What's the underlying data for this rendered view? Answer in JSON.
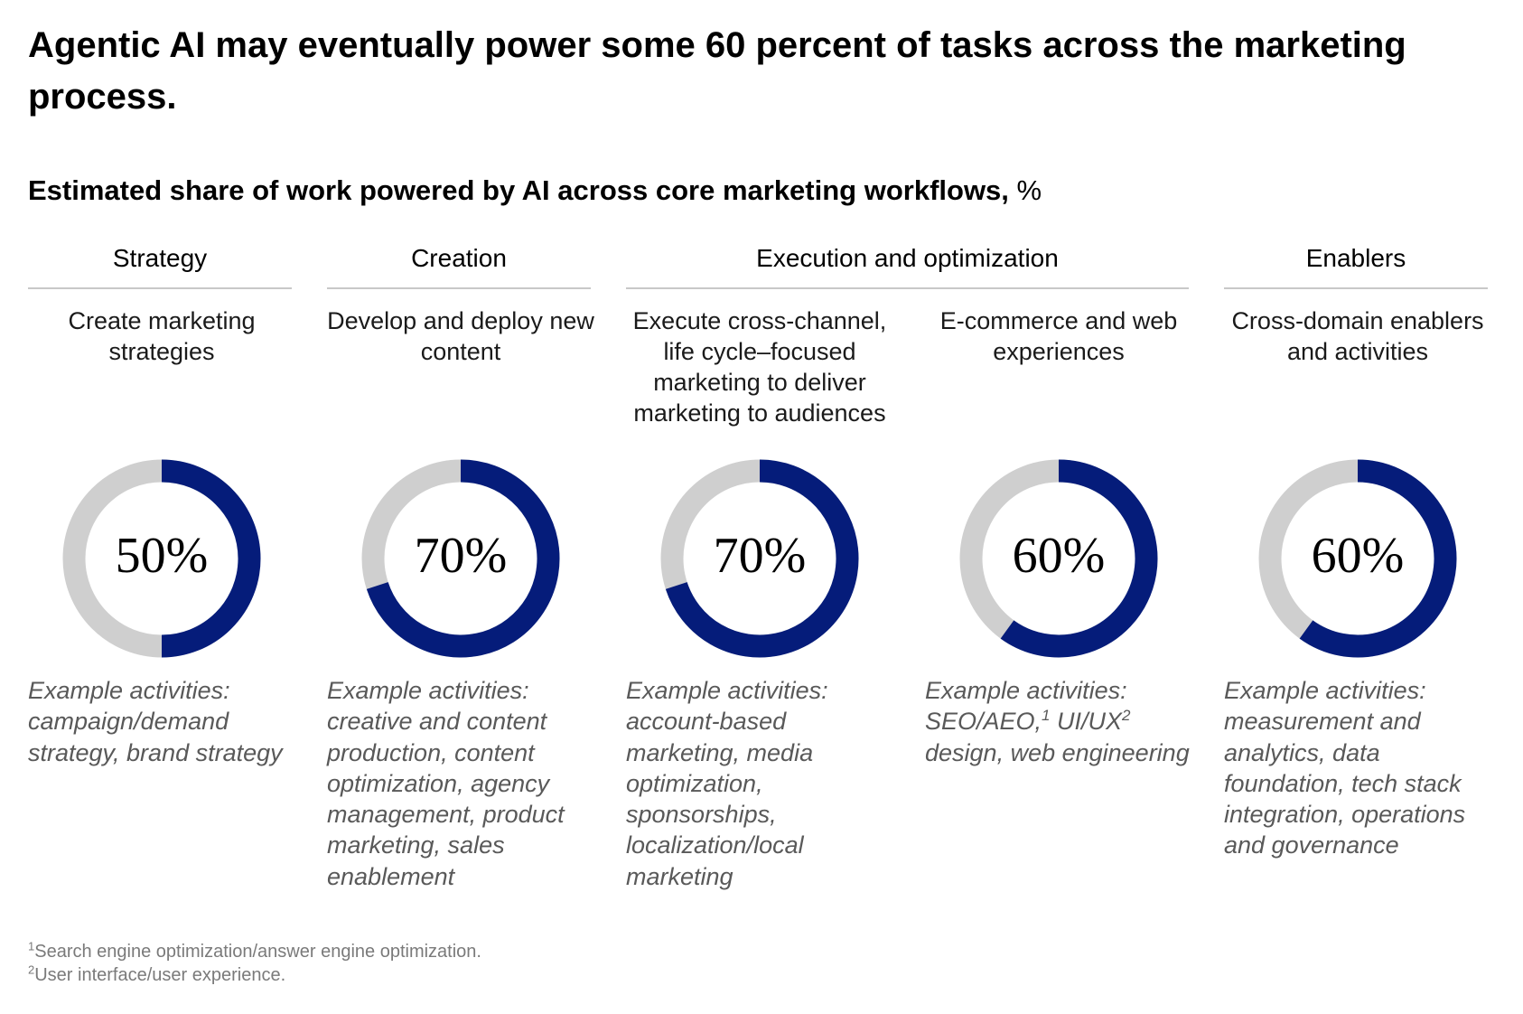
{
  "title": "Agentic AI may eventually power some 60 percent of tasks across the marketing process.",
  "subtitle": "Estimated share of work powered by AI across core marketing workflows,",
  "subtitle_unit": "%",
  "example_label": "Example activities:",
  "groups": [
    {
      "label": "Strategy"
    },
    {
      "label": "Creation"
    },
    {
      "label": "Execution and optimization"
    },
    {
      "label": "Enablers"
    }
  ],
  "chart_data": {
    "type": "pie",
    "variant": "donut",
    "categories": [
      "Create marketing strategies",
      "Develop and deploy new content",
      "Execute cross-channel, life cycle–focused marketing to deliver marketing to audiences",
      "E-commerce and web experiences",
      "Cross-domain enablers and activities"
    ],
    "values": [
      50,
      70,
      70,
      60,
      60
    ],
    "value_labels": [
      "50%",
      "70%",
      "70%",
      "60%",
      "60%"
    ],
    "unit": "%",
    "max": 100,
    "colors": {
      "filled": "#051c7a",
      "remainder": "#cfcfcf"
    }
  },
  "columns": [
    {
      "group": "Strategy",
      "description": "Create marketing strategies",
      "examples": [
        "campaign/demand strategy, brand strategy"
      ]
    },
    {
      "group": "Creation",
      "description": "Develop and deploy new content",
      "examples": [
        "creative and content production, content optimization, agency management, product marketing, sales enablement"
      ]
    },
    {
      "group": "Execution and optimization",
      "description": "Execute cross-channel, life cycle–focused marketing to deliver marketing to audiences",
      "examples": [
        "account-based marketing, media optimization, sponsorships, localization/local marketing"
      ]
    },
    {
      "group": "Execution and optimization",
      "description": "E-commerce and web experiences",
      "examples": [
        "SEO/AEO,",
        "1",
        " UI/UX",
        "2",
        " design, web engineering"
      ]
    },
    {
      "group": "Enablers",
      "description": "Cross-domain enablers and activities",
      "examples": [
        "measurement and analytics, data foundation, tech stack integration, operations and governance"
      ]
    }
  ],
  "footnotes": [
    {
      "marker": "1",
      "text": "Search engine optimization/answer engine optimization."
    },
    {
      "marker": "2",
      "text": "User interface/user experience."
    }
  ]
}
